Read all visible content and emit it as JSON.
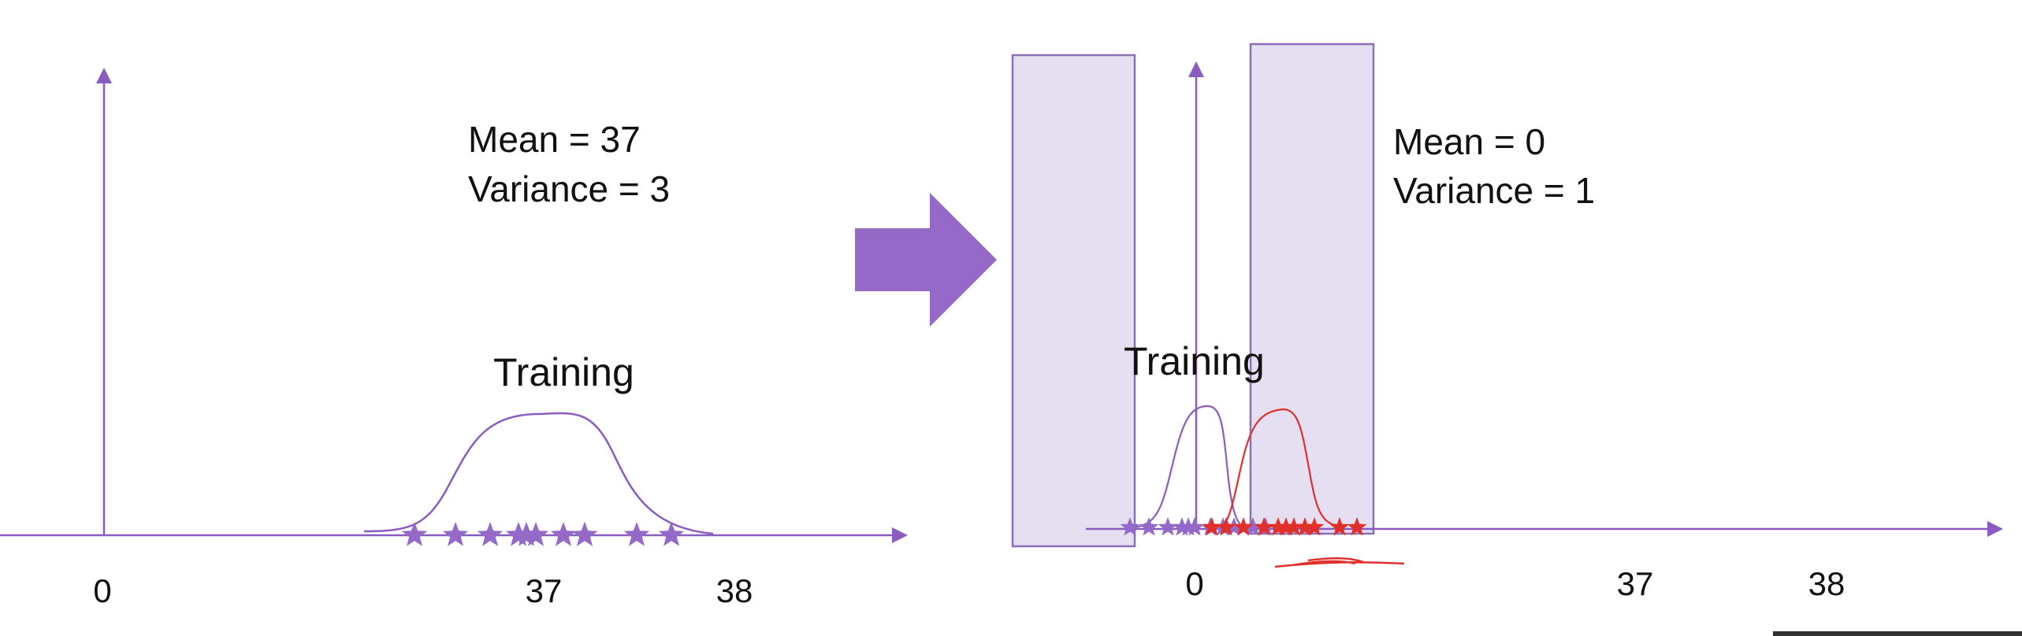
{
  "colors": {
    "purple": "#8a5cc0",
    "purple_fill": "#9469c7",
    "highlight_fill": "#e6dff2",
    "highlight_stroke": "#8a70b8",
    "red": "#e0302a",
    "text": "#111111"
  },
  "left_panel": {
    "mean_label": "Mean = 37",
    "variance_label": "Variance = 3",
    "curve_label": "Training",
    "ticks": [
      "0",
      "37",
      "38"
    ],
    "star_count": 11
  },
  "arrow": {
    "icon": "right-arrow-icon"
  },
  "right_panel": {
    "mean_label": "Mean = 0",
    "variance_label": "Variance = 1",
    "curve_label": "Training",
    "ticks": [
      "0",
      "37",
      "38"
    ],
    "purple_star_count": 11,
    "red_star_count": 11
  }
}
